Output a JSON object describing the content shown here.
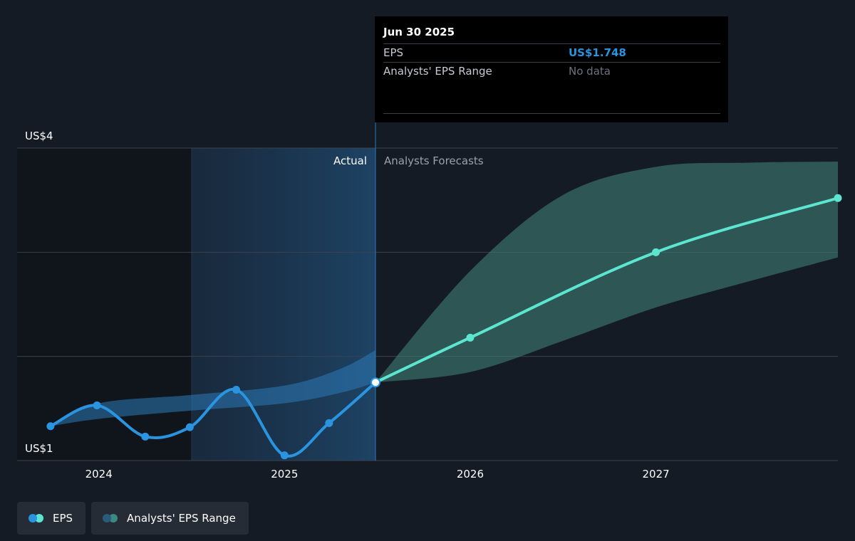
{
  "tooltip": {
    "date": "Jun 30 2025",
    "rows": [
      {
        "label": "EPS",
        "value": "US$1.748"
      },
      {
        "label": "Analysts' EPS Range",
        "value": "No data"
      }
    ]
  },
  "regions": {
    "actual_label": "Actual",
    "forecast_label": "Analysts Forecasts"
  },
  "legend": [
    {
      "label": "EPS",
      "colors": [
        "#2b94e0",
        "#5ce6d0"
      ]
    },
    {
      "label": "Analysts' EPS Range",
      "colors": [
        "#2c5a7a",
        "#3a8a80"
      ]
    }
  ],
  "colors": {
    "eps_actual": "#2b94e0",
    "eps_forecast": "#5ce6d0",
    "actual_band": "#2b7ab8",
    "forecast_band": "#3e7f77",
    "background": "#151b24"
  },
  "chart_data": {
    "type": "line",
    "ylim": [
      1,
      4
    ],
    "y_tick_labels": [
      {
        "value": 4,
        "label": "US$4"
      },
      {
        "value": 1,
        "label": "US$1"
      }
    ],
    "x_tick_labels": [
      {
        "value": 2024.0,
        "label": "2024"
      },
      {
        "value": 2025.0,
        "label": "2025"
      },
      {
        "value": 2026.0,
        "label": "2026"
      },
      {
        "value": 2027.0,
        "label": "2027"
      }
    ],
    "xlim": [
      2023.56,
      2027.98
    ],
    "highlight_start": 2024.5,
    "split": 2025.49,
    "series": [
      {
        "name": "EPS",
        "segment": "actual",
        "points": [
          [
            2023.74,
            1.33
          ],
          [
            2023.99,
            1.53
          ],
          [
            2024.25,
            1.23
          ],
          [
            2024.49,
            1.32
          ],
          [
            2024.74,
            1.68
          ],
          [
            2025.0,
            1.05
          ],
          [
            2025.24,
            1.36
          ],
          [
            2025.49,
            1.75
          ]
        ]
      },
      {
        "segment": "forecast",
        "points": [
          [
            2025.49,
            1.75
          ],
          [
            2026.0,
            2.18
          ],
          [
            2027.0,
            3.0
          ],
          [
            2027.98,
            3.52
          ]
        ]
      }
    ],
    "bands": [
      {
        "segment": "actual",
        "upper": [
          [
            2023.74,
            1.33
          ],
          [
            2024.0,
            1.55
          ],
          [
            2024.5,
            1.63
          ],
          [
            2025.0,
            1.72
          ],
          [
            2025.3,
            1.88
          ],
          [
            2025.49,
            2.06
          ]
        ],
        "lower": [
          [
            2023.74,
            1.33
          ],
          [
            2024.0,
            1.4
          ],
          [
            2024.5,
            1.48
          ],
          [
            2025.0,
            1.55
          ],
          [
            2025.3,
            1.65
          ],
          [
            2025.49,
            1.75
          ]
        ]
      },
      {
        "segment": "forecast",
        "upper": [
          [
            2025.49,
            1.75
          ],
          [
            2026.0,
            2.82
          ],
          [
            2026.5,
            3.55
          ],
          [
            2027.0,
            3.82
          ],
          [
            2027.5,
            3.86
          ],
          [
            2027.98,
            3.87
          ]
        ],
        "lower": [
          [
            2025.49,
            1.75
          ],
          [
            2026.0,
            1.85
          ],
          [
            2026.5,
            2.15
          ],
          [
            2027.0,
            2.47
          ],
          [
            2027.5,
            2.72
          ],
          [
            2027.98,
            2.95
          ]
        ]
      }
    ]
  }
}
